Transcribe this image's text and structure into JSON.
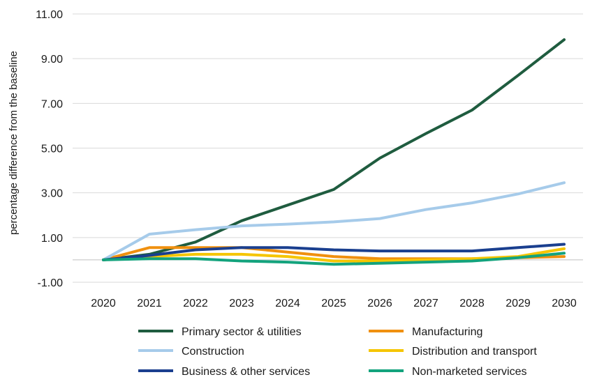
{
  "chart_data": {
    "type": "line",
    "title": "",
    "xlabel": "",
    "ylabel": "percentage difference from the baseline",
    "x": [
      2020,
      2021,
      2022,
      2023,
      2024,
      2025,
      2026,
      2027,
      2028,
      2029,
      2030
    ],
    "x_tick_labels": [
      "2020",
      "2021",
      "2022",
      "2023",
      "2024",
      "2025",
      "2026",
      "2027",
      "2028",
      "2029",
      "2030"
    ],
    "ylim": [
      -1,
      11
    ],
    "y_ticks": [
      -1,
      1,
      3,
      5,
      7,
      9,
      11
    ],
    "y_tick_labels": [
      "-1.00",
      "1.00",
      "3.00",
      "5.00",
      "7.00",
      "9.00",
      "11.00"
    ],
    "grid": "horizontal",
    "legend_position": "bottom",
    "series": [
      {
        "name": "Primary sector & utilities",
        "color": "#1f5c3f",
        "values": [
          0.0,
          0.25,
          0.8,
          1.75,
          2.45,
          3.15,
          4.55,
          5.65,
          6.7,
          8.25,
          9.85
        ]
      },
      {
        "name": "Manufacturing",
        "color": "#f0900f",
        "values": [
          0.0,
          0.55,
          0.55,
          0.55,
          0.35,
          0.15,
          0.05,
          0.05,
          0.05,
          0.1,
          0.15
        ]
      },
      {
        "name": "Construction",
        "color": "#a6cbea",
        "values": [
          0.0,
          1.15,
          1.35,
          1.52,
          1.6,
          1.7,
          1.85,
          2.25,
          2.55,
          2.95,
          3.45
        ]
      },
      {
        "name": "Distribution and transport",
        "color": "#f5c500",
        "values": [
          0.0,
          0.15,
          0.25,
          0.25,
          0.15,
          -0.05,
          -0.05,
          0.0,
          0.05,
          0.15,
          0.5
        ]
      },
      {
        "name": "Business & other services",
        "color": "#1a3f8f",
        "values": [
          0.0,
          0.2,
          0.45,
          0.55,
          0.55,
          0.45,
          0.4,
          0.4,
          0.4,
          0.55,
          0.7
        ]
      },
      {
        "name": "Non-marketed services",
        "color": "#13a37d",
        "values": [
          0.0,
          0.05,
          0.05,
          -0.05,
          -0.1,
          -0.2,
          -0.15,
          -0.1,
          -0.05,
          0.1,
          0.3
        ]
      }
    ]
  }
}
